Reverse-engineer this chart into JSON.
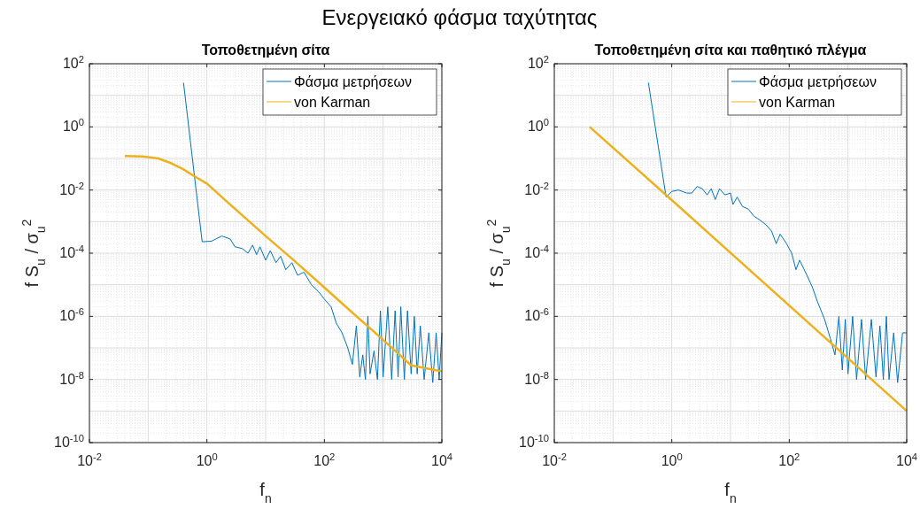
{
  "chart_data": [
    {
      "type": "line",
      "title": "Τοποθετημένη σίτα",
      "annotations": [
        "Ενεργειακό φάσμα ταχύτητας"
      ],
      "xlabel": "f$_{n}$",
      "ylabel": "f S$_{u}$ / σ$_{u}$$^{2}$",
      "log": "xy",
      "grid": true,
      "legend": "top right",
      "xlim": [
        0.01,
        10000
      ],
      "xticks": [
        {
          "value": 0.01,
          "label": "10$^{-2}$"
        },
        {
          "value": 1,
          "label": "10$^{0}$"
        },
        {
          "value": 100,
          "label": "10$^{2}$"
        },
        {
          "value": 10000,
          "label": "10$^{4}$"
        }
      ],
      "ylim": [
        1e-10,
        100
      ],
      "yticks": [
        {
          "value": 1e-10,
          "label": "10$^{-10}$"
        },
        {
          "value": 1e-08,
          "label": "10$^{-8}$"
        },
        {
          "value": 1e-06,
          "label": "10$^{-6}$"
        },
        {
          "value": 0.0001,
          "label": "10$^{-4}$"
        },
        {
          "value": 0.01,
          "label": "10$^{-2}$"
        },
        {
          "value": 1,
          "label": "10$^{0}$"
        },
        {
          "value": 100,
          "label": "10$^{2}$"
        }
      ],
      "series": [
        {
          "name": "Φάσμα μετρήσεων",
          "color": "#0072bd",
          "x": [
            0.4,
            0.83,
            1.2,
            1.8,
            2.5,
            3,
            4,
            5,
            6,
            7,
            8,
            10,
            12,
            15,
            18,
            22,
            28,
            35,
            45,
            60,
            80,
            100,
            130,
            160,
            200,
            250,
            300,
            350,
            400,
            450,
            500,
            550,
            600,
            700,
            800,
            900,
            1000,
            1200,
            1400,
            1600,
            1800,
            2000,
            2300,
            2600,
            3000,
            3400,
            3800,
            4300,
            5000,
            6000,
            7000,
            8000,
            9000,
            10000
          ],
          "values": [
            25,
            0.00023,
            0.00024,
            0.00035,
            0.00028,
            0.00016,
            0.00014,
            0.0001,
            0.00018,
            9e-05,
            0.00016,
            6e-05,
            0.00012,
            5e-05,
            8e-05,
            3e-05,
            5e-05,
            2e-05,
            2.5e-05,
            1e-05,
            6e-06,
            3.5e-06,
            2e-06,
            6e-07,
            3e-07,
            1e-07,
            3e-08,
            5e-07,
            1.2e-08,
            6e-08,
            1e-08,
            1e-06,
            1.5e-08,
            8e-08,
            1e-08,
            1.5e-06,
            1.2e-08,
            2e-06,
            1e-08,
            1.5e-06,
            1.2e-08,
            2e-06,
            1e-08,
            1.5e-06,
            1.5e-08,
            1e-06,
            1.5e-08,
            5e-07,
            1e-08,
            3e-07,
            8e-09,
            3e-07,
            1e-08,
            3e-07
          ]
        },
        {
          "name": "von Karman",
          "color": "#edb120",
          "x": [
            0.04,
            0.08,
            0.15,
            0.25,
            0.4,
            0.6,
            1,
            2,
            5,
            10,
            30,
            100,
            300,
            1000,
            3000,
            10000
          ],
          "values": [
            0.12,
            0.115,
            0.1,
            0.07,
            0.045,
            0.028,
            0.016,
            0.005,
            0.0011,
            0.00035,
            6e-05,
            8.2e-06,
            1.3e-06,
            1.8e-07,
            2.8e-08,
            1.8e-08
          ]
        }
      ]
    },
    {
      "type": "line",
      "title": "Τοποθετημένη σίτα και παθητικό πλέγμα",
      "xlabel": "f$_{n}$",
      "ylabel": "f S$_{u}$ / σ$_{u}$$^{2}$",
      "log": "xy",
      "grid": true,
      "legend": "top right",
      "xlim": [
        0.01,
        10000
      ],
      "xticks": [
        {
          "value": 0.01,
          "label": "10$^{-2}$"
        },
        {
          "value": 1,
          "label": "10$^{0}$"
        },
        {
          "value": 100,
          "label": "10$^{2}$"
        },
        {
          "value": 10000,
          "label": "10$^{4}$"
        }
      ],
      "ylim": [
        1e-10,
        100
      ],
      "yticks": [
        {
          "value": 1e-10,
          "label": "10$^{-10}$"
        },
        {
          "value": 1e-08,
          "label": "10$^{-8}$"
        },
        {
          "value": 1e-06,
          "label": "10$^{-6}$"
        },
        {
          "value": 0.0001,
          "label": "10$^{-4}$"
        },
        {
          "value": 0.01,
          "label": "10$^{-2}$"
        },
        {
          "value": 1,
          "label": "10$^{0}$"
        },
        {
          "value": 100,
          "label": "10$^{2}$"
        }
      ],
      "series": [
        {
          "name": "Φάσμα μετρήσεων",
          "color": "#0072bd",
          "x": [
            0.4,
            0.8,
            1,
            1.3,
            1.8,
            2.2,
            2.7,
            3.3,
            4,
            4.7,
            5.5,
            6.5,
            8,
            10,
            11,
            13,
            16,
            20,
            25,
            32,
            40,
            50,
            60,
            70,
            90,
            110,
            130,
            150,
            200,
            250,
            300,
            400,
            500,
            600,
            700,
            800,
            900,
            1000,
            1200,
            1400,
            1700,
            2000,
            2500,
            3000,
            3500,
            4000,
            4500,
            5000,
            6000,
            7000,
            8500,
            10000
          ],
          "values": [
            25,
            0.006,
            0.009,
            0.01,
            0.008,
            0.008,
            0.013,
            0.011,
            0.007,
            0.011,
            0.005,
            0.011,
            0.007,
            0.008,
            0.0035,
            0.006,
            0.003,
            0.0025,
            0.0015,
            0.0011,
            0.0008,
            0.0005,
            0.0002,
            0.0004,
            0.0002,
            0.0001,
            3e-05,
            6e-05,
            2e-05,
            8e-06,
            3e-06,
            8e-07,
            2e-07,
            6e-08,
            1e-06,
            2e-08,
            8e-07,
            1.5e-08,
            1e-06,
            1e-08,
            8e-07,
            1e-08,
            8e-07,
            1.2e-08,
            5e-07,
            1e-08,
            1e-06,
            1e-08,
            3e-07,
            8e-09,
            3e-07,
            3e-07
          ]
        },
        {
          "name": "von Karman",
          "color": "#edb120",
          "x": [
            0.04,
            1,
            10000
          ],
          "values": [
            1,
            0.0048,
            1e-09
          ]
        }
      ]
    }
  ]
}
